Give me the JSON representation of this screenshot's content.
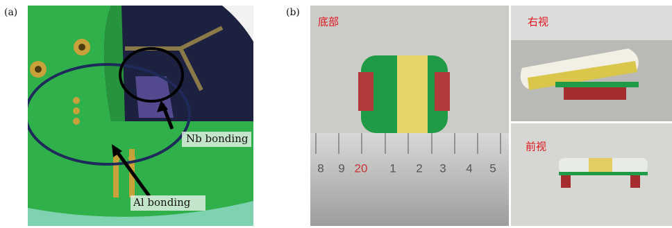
{
  "panels": [
    {
      "label": "(a)",
      "annotations": [
        "Nb bonding",
        "Al bonding"
      ]
    },
    {
      "label": "(b)",
      "views": [
        "底部",
        "右视",
        "前视"
      ],
      "ruler_labels": [
        "8",
        "9",
        "20",
        "1",
        "2",
        "3",
        "4",
        "5"
      ]
    }
  ]
}
